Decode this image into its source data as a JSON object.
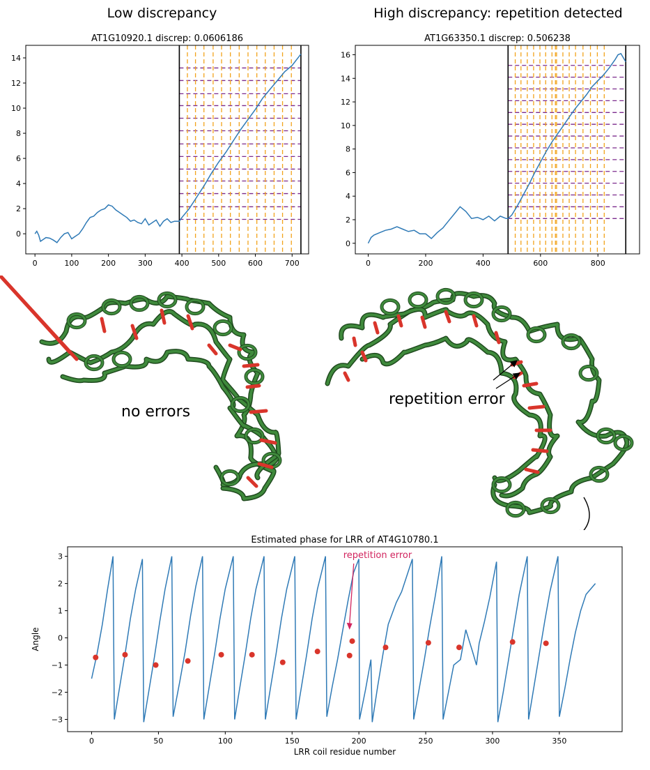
{
  "headings": {
    "left": "Low discrepancy",
    "right": "High discrepancy: repetition detected"
  },
  "protein_labels": {
    "left": "no errors",
    "right": "repetition error"
  },
  "colors": {
    "line": "#2f7ab6",
    "vline": "#f2a31b",
    "hline": "#7b2a8c",
    "marker": "#d9352b",
    "annotation": "#d1245e",
    "ribbon": "#3f8a3c",
    "ribbon_dark": "#1f4a1e",
    "highlight": "#d9352b"
  },
  "chart_data": [
    {
      "id": "left",
      "type": "line",
      "title": "AT1G10920.1 discrep: 0.0606186",
      "xlim": [
        -25,
        745
      ],
      "ylim": [
        -1.6,
        15
      ],
      "xticks": [
        0,
        100,
        200,
        300,
        400,
        500,
        600,
        700
      ],
      "yticks": [
        0,
        2,
        4,
        6,
        8,
        10,
        12,
        14
      ],
      "boundaries": [
        393,
        724
      ],
      "vlines": [
        415,
        437,
        460,
        485,
        508,
        532,
        556,
        580,
        604,
        627,
        651,
        674,
        698
      ],
      "hlines": [
        1.15,
        2.15,
        3.2,
        4.2,
        5.15,
        6.15,
        7.15,
        8.2,
        9.2,
        10.2,
        11.15,
        12.2,
        13.2
      ],
      "series": [
        {
          "x": [
            0,
            5,
            10,
            15,
            20,
            30,
            40,
            50,
            60,
            70,
            80,
            90,
            100,
            110,
            120,
            130,
            140,
            150,
            160,
            170,
            180,
            190,
            200,
            210,
            220,
            230,
            240,
            250,
            260,
            270,
            280,
            290,
            300,
            310,
            320,
            330,
            340,
            350,
            360,
            370,
            380,
            393,
            400,
            420,
            440,
            460,
            480,
            500,
            520,
            540,
            560,
            580,
            600,
            620,
            640,
            660,
            680,
            700,
            724
          ],
          "y": [
            0.0,
            0.2,
            -0.1,
            -0.6,
            -0.5,
            -0.3,
            -0.35,
            -0.5,
            -0.7,
            -0.3,
            0.0,
            0.1,
            -0.4,
            -0.2,
            0.0,
            0.4,
            0.9,
            1.3,
            1.4,
            1.7,
            1.9,
            2.0,
            2.3,
            2.2,
            1.9,
            1.7,
            1.5,
            1.3,
            1.0,
            1.1,
            0.9,
            0.8,
            1.2,
            0.7,
            0.9,
            1.1,
            0.6,
            1.0,
            1.2,
            0.9,
            1.0,
            1.0,
            1.3,
            2.0,
            2.9,
            3.8,
            4.8,
            5.7,
            6.5,
            7.4,
            8.3,
            9.1,
            9.9,
            10.8,
            11.5,
            12.2,
            12.9,
            13.4,
            14.3
          ]
        }
      ]
    },
    {
      "id": "right",
      "type": "line",
      "title": "AT1G63350.1 discrep: 0.506238",
      "xlim": [
        -45,
        945
      ],
      "ylim": [
        -0.9,
        16.8
      ],
      "xticks": [
        0,
        200,
        400,
        600,
        800
      ],
      "yticks": [
        0,
        2,
        4,
        6,
        8,
        10,
        12,
        14,
        16
      ],
      "boundaries": [
        487,
        897
      ],
      "vlines": [
        512,
        532,
        554,
        576,
        598,
        618,
        640,
        652,
        656,
        678,
        700,
        722,
        748,
        774,
        798,
        822
      ],
      "hlines": [
        2.1,
        3.1,
        4.1,
        5.1,
        6.1,
        7.1,
        8.1,
        9.1,
        10.1,
        11.1,
        12.1,
        13.1,
        14.1,
        15.1
      ],
      "series": [
        {
          "x": [
            0,
            10,
            20,
            40,
            60,
            80,
            100,
            120,
            140,
            160,
            180,
            200,
            220,
            240,
            260,
            280,
            300,
            320,
            340,
            360,
            380,
            400,
            420,
            440,
            460,
            480,
            487,
            500,
            520,
            540,
            560,
            580,
            600,
            620,
            640,
            660,
            680,
            700,
            720,
            740,
            760,
            780,
            800,
            820,
            840,
            860,
            870,
            880,
            897
          ],
          "y": [
            0.0,
            0.5,
            0.7,
            0.9,
            1.1,
            1.2,
            1.4,
            1.2,
            1.0,
            1.1,
            0.8,
            0.8,
            0.4,
            0.9,
            1.3,
            1.9,
            2.5,
            3.1,
            2.7,
            2.1,
            2.2,
            2.0,
            2.3,
            1.9,
            2.3,
            2.1,
            2.1,
            2.4,
            3.2,
            4.1,
            5.0,
            6.0,
            6.9,
            7.8,
            8.6,
            9.3,
            10.0,
            10.7,
            11.4,
            12.0,
            12.6,
            13.3,
            13.8,
            14.3,
            14.9,
            15.6,
            16.0,
            16.1,
            15.4
          ]
        }
      ]
    },
    {
      "id": "bottom",
      "type": "line",
      "title": "Estimated phase for LRR of AT4G10780.1",
      "xlabel": "LRR coil residue number",
      "ylabel": "Angle",
      "xlim": [
        -18,
        397
      ],
      "ylim": [
        -3.45,
        3.35
      ],
      "xticks": [
        0,
        50,
        100,
        150,
        200,
        250,
        300,
        350
      ],
      "yticks": [
        -3,
        -2,
        -1,
        0,
        1,
        2,
        3
      ],
      "series": [
        {
          "x": [
            0,
            4,
            8,
            12,
            16,
            17,
            21,
            25,
            29,
            33,
            38,
            39,
            43,
            47,
            51,
            55,
            60,
            61,
            66,
            70,
            74,
            78,
            83,
            84,
            88,
            92,
            96,
            100,
            106,
            107,
            111,
            115,
            119,
            123,
            129,
            130,
            134,
            138,
            142,
            146,
            152,
            153,
            157,
            161,
            165,
            169,
            175,
            176,
            180,
            184,
            188,
            192,
            196,
            200,
            200.5,
            205,
            209,
            210,
            214,
            218,
            222,
            228,
            232,
            240,
            241,
            245,
            249,
            253,
            257,
            262,
            263,
            267,
            271,
            276,
            280,
            285,
            288,
            290,
            294,
            298,
            303,
            304,
            308,
            312,
            316,
            320,
            326,
            327,
            331,
            335,
            339,
            343,
            349,
            350,
            354,
            358,
            362,
            366,
            370,
            377
          ],
          "y": [
            -1.5,
            -0.6,
            0.5,
            1.8,
            3.0,
            -3.0,
            -1.8,
            -0.6,
            0.7,
            1.8,
            2.9,
            -3.1,
            -1.9,
            -0.7,
            0.6,
            1.8,
            3.0,
            -2.9,
            -1.6,
            -0.5,
            0.8,
            1.9,
            3.0,
            -3.0,
            -1.8,
            -0.6,
            0.7,
            1.8,
            3.0,
            -3.0,
            -1.8,
            -0.6,
            0.7,
            1.8,
            3.0,
            -3.0,
            -1.8,
            -0.6,
            0.7,
            1.8,
            3.0,
            -3.0,
            -1.8,
            -0.6,
            0.7,
            1.8,
            3.0,
            -2.9,
            -1.8,
            -0.8,
            0.3,
            1.4,
            2.4,
            2.9,
            -3.0,
            -1.9,
            -0.8,
            -3.1,
            -1.8,
            -0.6,
            0.5,
            1.3,
            1.7,
            2.9,
            -3.0,
            -1.9,
            -0.8,
            0.4,
            1.5,
            3.0,
            -3.0,
            -2.0,
            -1.0,
            -0.8,
            0.3,
            -0.5,
            -1.0,
            -0.2,
            0.6,
            1.5,
            2.8,
            -3.1,
            -2.0,
            -0.8,
            0.4,
            1.6,
            3.0,
            -3.0,
            -1.8,
            -0.6,
            0.6,
            1.7,
            3.0,
            -2.9,
            -1.9,
            -0.8,
            0.2,
            1.0,
            1.6,
            2.0
          ]
        }
      ],
      "markers": {
        "x": [
          3,
          25,
          48,
          72,
          97,
          120,
          143,
          169,
          193,
          195,
          220,
          252,
          275,
          315,
          340
        ],
        "y": [
          -0.72,
          -0.62,
          -1.0,
          -0.85,
          -0.62,
          -0.62,
          -0.9,
          -0.5,
          -0.65,
          -0.12,
          -0.35,
          -0.18,
          -0.35,
          -0.15,
          -0.2
        ]
      },
      "annotation": {
        "text": "repetition error",
        "x": 193,
        "y": 0.3
      }
    }
  ]
}
